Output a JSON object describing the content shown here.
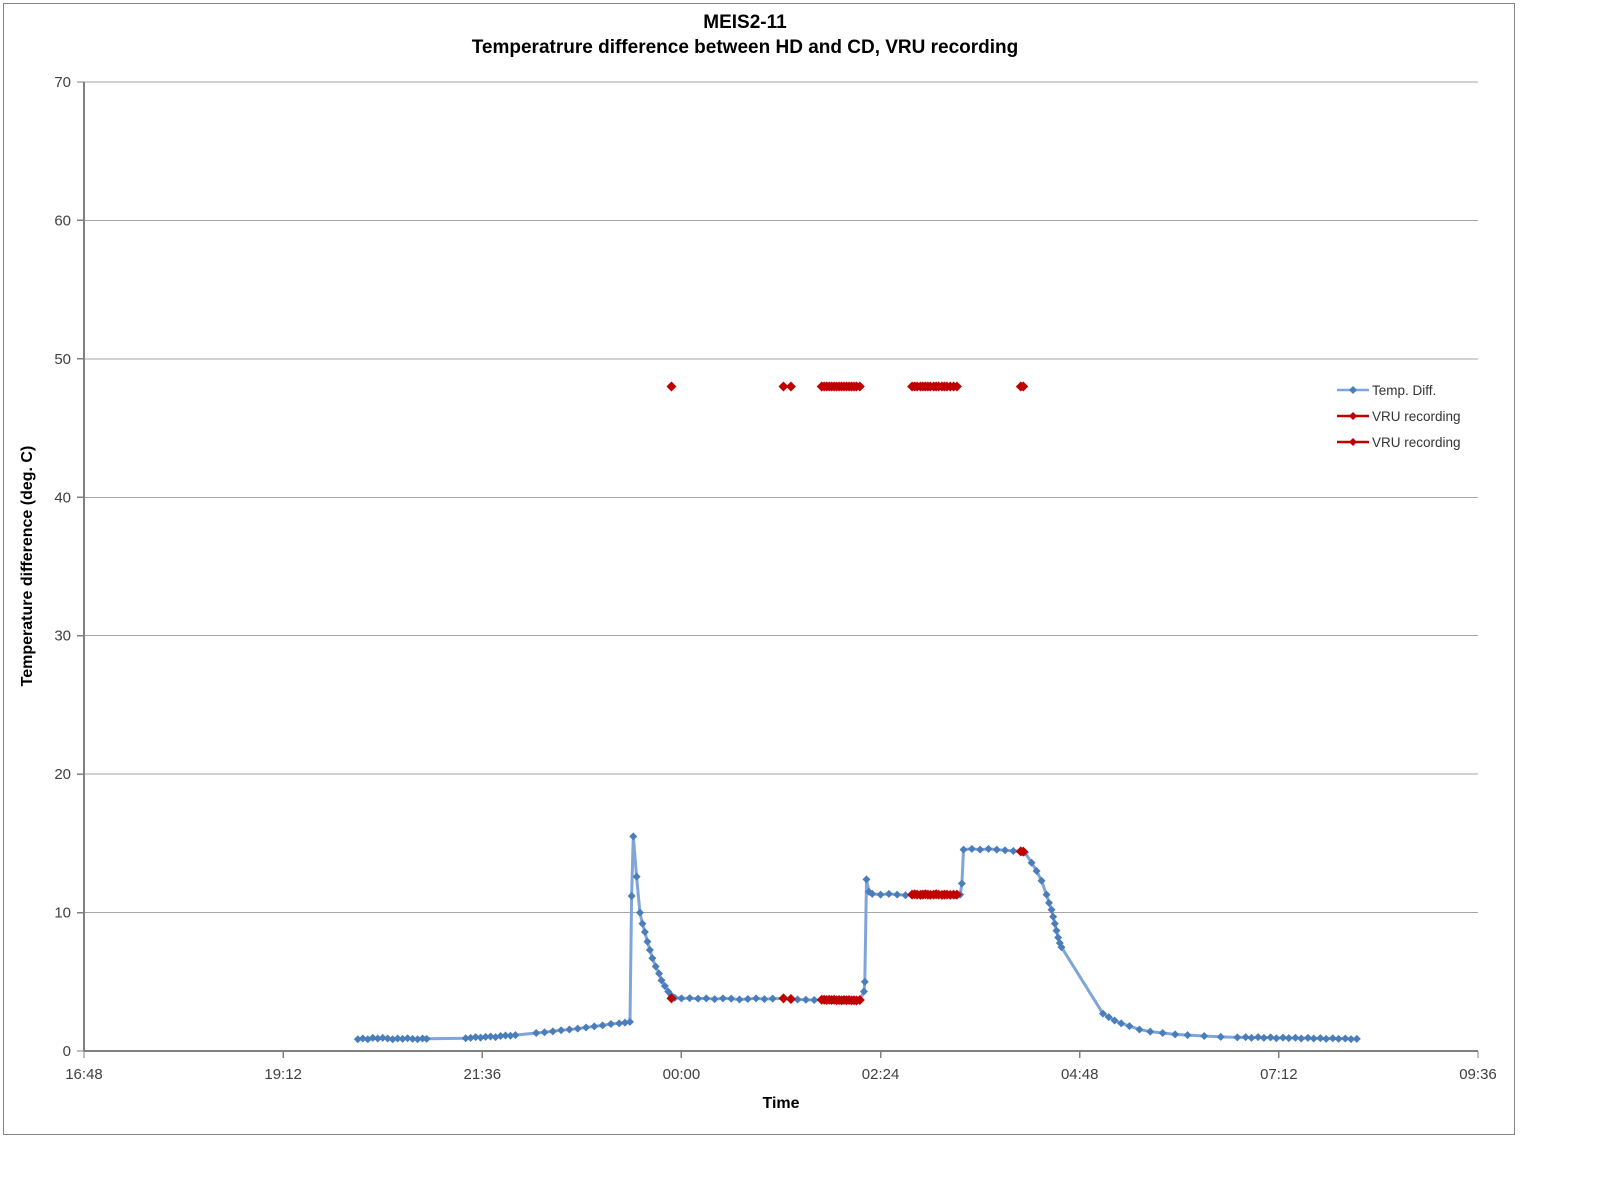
{
  "chart_data": {
    "type": "line",
    "title": "MEIS2-11 — Temperatrure difference between HD and CD, VRU recording",
    "title_line1": "MEIS2-11",
    "title_line2": "Temperatrure difference between HD and CD, VRU recording",
    "xlabel": "Time",
    "ylabel": "Temperature difference (deg. C)",
    "x_unit": "decimal hours after 16:48",
    "xlim": [
      0,
      16.8
    ],
    "ylim": [
      0,
      70
    ],
    "grid": "horizontal-major",
    "legend_position": "right",
    "y_ticks": [
      0,
      10,
      20,
      30,
      40,
      50,
      60,
      70
    ],
    "x_ticks": [
      {
        "t": 0.0,
        "label": "16:48"
      },
      {
        "t": 2.4,
        "label": "19:12"
      },
      {
        "t": 4.8,
        "label": "21:36"
      },
      {
        "t": 7.2,
        "label": "00:00"
      },
      {
        "t": 9.6,
        "label": "02:24"
      },
      {
        "t": 12.0,
        "label": "04:48"
      },
      {
        "t": 14.4,
        "label": "07:12"
      },
      {
        "t": 16.8,
        "label": "09:36"
      }
    ],
    "colors": {
      "grid": "#a6a6a6",
      "axis": "#808080",
      "tick_text": "#404040"
    },
    "series": [
      {
        "name": "Temp. Diff.",
        "marker": "diamond",
        "draw_line": true,
        "line_color": "#7fa5db",
        "marker_color": "#4a7ebb",
        "line_width": 3,
        "marker_size": 4,
        "points": [
          [
            3.3,
            0.85
          ],
          [
            3.36,
            0.9
          ],
          [
            3.42,
            0.85
          ],
          [
            3.48,
            0.95
          ],
          [
            3.54,
            0.9
          ],
          [
            3.6,
            0.95
          ],
          [
            3.66,
            0.9
          ],
          [
            3.72,
            0.85
          ],
          [
            3.78,
            0.9
          ],
          [
            3.84,
            0.88
          ],
          [
            3.9,
            0.92
          ],
          [
            3.96,
            0.88
          ],
          [
            4.02,
            0.85
          ],
          [
            4.08,
            0.9
          ],
          [
            4.13,
            0.88
          ],
          [
            4.6,
            0.92
          ],
          [
            4.66,
            0.95
          ],
          [
            4.72,
            1.0
          ],
          [
            4.78,
            0.97
          ],
          [
            4.84,
            1.02
          ],
          [
            4.9,
            1.05
          ],
          [
            4.96,
            1.0
          ],
          [
            5.02,
            1.08
          ],
          [
            5.08,
            1.12
          ],
          [
            5.14,
            1.1
          ],
          [
            5.2,
            1.15
          ],
          [
            5.45,
            1.3
          ],
          [
            5.55,
            1.35
          ],
          [
            5.65,
            1.42
          ],
          [
            5.75,
            1.5
          ],
          [
            5.85,
            1.55
          ],
          [
            5.95,
            1.62
          ],
          [
            6.05,
            1.7
          ],
          [
            6.15,
            1.78
          ],
          [
            6.25,
            1.85
          ],
          [
            6.35,
            1.95
          ],
          [
            6.45,
            2.0
          ],
          [
            6.52,
            2.05
          ],
          [
            6.58,
            2.1
          ],
          [
            6.6,
            11.2
          ],
          [
            6.62,
            15.5
          ],
          [
            6.66,
            12.6
          ],
          [
            6.7,
            10.0
          ],
          [
            6.73,
            9.2
          ],
          [
            6.76,
            8.6
          ],
          [
            6.79,
            7.9
          ],
          [
            6.82,
            7.3
          ],
          [
            6.85,
            6.7
          ],
          [
            6.89,
            6.1
          ],
          [
            6.93,
            5.6
          ],
          [
            6.96,
            5.1
          ],
          [
            7.0,
            4.7
          ],
          [
            7.04,
            4.3
          ],
          [
            7.08,
            4.0
          ],
          [
            7.12,
            3.85
          ],
          [
            7.2,
            3.8
          ],
          [
            7.3,
            3.82
          ],
          [
            7.4,
            3.78
          ],
          [
            7.5,
            3.8
          ],
          [
            7.6,
            3.75
          ],
          [
            7.7,
            3.8
          ],
          [
            7.8,
            3.78
          ],
          [
            7.9,
            3.72
          ],
          [
            8.0,
            3.76
          ],
          [
            8.1,
            3.8
          ],
          [
            8.2,
            3.75
          ],
          [
            8.3,
            3.78
          ],
          [
            8.43,
            3.8
          ],
          [
            8.52,
            3.76
          ],
          [
            8.6,
            3.72
          ],
          [
            8.7,
            3.7
          ],
          [
            8.8,
            3.68
          ],
          [
            8.9,
            3.7
          ],
          [
            9.0,
            3.68
          ],
          [
            9.1,
            3.66
          ],
          [
            9.2,
            3.68
          ],
          [
            9.3,
            3.65
          ],
          [
            9.35,
            3.68
          ],
          [
            9.4,
            4.3
          ],
          [
            9.41,
            5.0
          ],
          [
            9.43,
            12.4
          ],
          [
            9.46,
            11.5
          ],
          [
            9.5,
            11.35
          ],
          [
            9.6,
            11.3
          ],
          [
            9.7,
            11.35
          ],
          [
            9.8,
            11.3
          ],
          [
            9.9,
            11.25
          ],
          [
            10.0,
            11.3
          ],
          [
            10.1,
            11.35
          ],
          [
            10.2,
            11.3
          ],
          [
            10.3,
            11.25
          ],
          [
            10.4,
            11.3
          ],
          [
            10.5,
            11.25
          ],
          [
            10.56,
            11.3
          ],
          [
            10.58,
            12.1
          ],
          [
            10.6,
            14.55
          ],
          [
            10.7,
            14.6
          ],
          [
            10.8,
            14.55
          ],
          [
            10.9,
            14.6
          ],
          [
            11.0,
            14.55
          ],
          [
            11.1,
            14.5
          ],
          [
            11.2,
            14.45
          ],
          [
            11.3,
            14.4
          ],
          [
            11.34,
            14.35
          ],
          [
            11.42,
            13.6
          ],
          [
            11.48,
            13.0
          ],
          [
            11.54,
            12.3
          ],
          [
            11.6,
            11.3
          ],
          [
            11.63,
            10.7
          ],
          [
            11.66,
            10.2
          ],
          [
            11.68,
            9.7
          ],
          [
            11.7,
            9.2
          ],
          [
            11.72,
            8.7
          ],
          [
            11.74,
            8.2
          ],
          [
            11.76,
            7.8
          ],
          [
            11.78,
            7.5
          ],
          [
            12.28,
            2.7
          ],
          [
            12.35,
            2.45
          ],
          [
            12.42,
            2.2
          ],
          [
            12.5,
            2.0
          ],
          [
            12.6,
            1.8
          ],
          [
            12.72,
            1.55
          ],
          [
            12.85,
            1.4
          ],
          [
            13.0,
            1.3
          ],
          [
            13.15,
            1.2
          ],
          [
            13.3,
            1.15
          ],
          [
            13.5,
            1.08
          ],
          [
            13.7,
            1.02
          ],
          [
            13.9,
            0.98
          ],
          [
            14.0,
            1.0
          ],
          [
            14.07,
            0.95
          ],
          [
            14.15,
            1.0
          ],
          [
            14.22,
            0.95
          ],
          [
            14.3,
            0.98
          ],
          [
            14.37,
            0.92
          ],
          [
            14.45,
            0.97
          ],
          [
            14.52,
            0.93
          ],
          [
            14.6,
            0.96
          ],
          [
            14.67,
            0.9
          ],
          [
            14.75,
            0.95
          ],
          [
            14.82,
            0.9
          ],
          [
            14.9,
            0.93
          ],
          [
            14.97,
            0.88
          ],
          [
            15.05,
            0.92
          ],
          [
            15.12,
            0.88
          ],
          [
            15.2,
            0.9
          ],
          [
            15.27,
            0.86
          ],
          [
            15.34,
            0.88
          ]
        ]
      },
      {
        "name": "VRU recording",
        "marker": "diamond",
        "draw_line": false,
        "line_color": "#c00000",
        "marker_color": "#c00000",
        "line_width": 3,
        "marker_size": 5,
        "note": "recording on/off flag plotted at constant level 48",
        "points": [
          [
            7.08,
            48
          ],
          [
            8.43,
            48
          ],
          [
            8.52,
            48
          ],
          [
            8.89,
            48
          ],
          [
            8.92,
            48
          ],
          [
            8.95,
            48
          ],
          [
            8.98,
            48
          ],
          [
            9.01,
            48
          ],
          [
            9.04,
            48
          ],
          [
            9.07,
            48
          ],
          [
            9.1,
            48
          ],
          [
            9.13,
            48
          ],
          [
            9.16,
            48
          ],
          [
            9.19,
            48
          ],
          [
            9.22,
            48
          ],
          [
            9.25,
            48
          ],
          [
            9.28,
            48
          ],
          [
            9.31,
            48
          ],
          [
            9.35,
            48
          ],
          [
            9.98,
            48
          ],
          [
            10.01,
            48
          ],
          [
            10.04,
            48
          ],
          [
            10.08,
            48
          ],
          [
            10.11,
            48
          ],
          [
            10.14,
            48
          ],
          [
            10.17,
            48
          ],
          [
            10.2,
            48
          ],
          [
            10.24,
            48
          ],
          [
            10.27,
            48
          ],
          [
            10.3,
            48
          ],
          [
            10.34,
            48
          ],
          [
            10.37,
            48
          ],
          [
            10.4,
            48
          ],
          [
            10.44,
            48
          ],
          [
            10.48,
            48
          ],
          [
            10.52,
            48
          ],
          [
            11.29,
            48
          ],
          [
            11.32,
            48
          ]
        ]
      },
      {
        "name": "VRU recording",
        "marker": "diamond",
        "draw_line": false,
        "line_color": "#c00000",
        "marker_color": "#c00000",
        "line_width": 3,
        "marker_size": 5,
        "note": "temperature difference values sampled while VRU recording",
        "points": [
          [
            7.08,
            3.8
          ],
          [
            8.43,
            3.8
          ],
          [
            8.52,
            3.76
          ],
          [
            8.89,
            3.7
          ],
          [
            8.92,
            3.7
          ],
          [
            8.95,
            3.68
          ],
          [
            8.98,
            3.7
          ],
          [
            9.01,
            3.68
          ],
          [
            9.04,
            3.7
          ],
          [
            9.07,
            3.67
          ],
          [
            9.1,
            3.68
          ],
          [
            9.13,
            3.66
          ],
          [
            9.16,
            3.68
          ],
          [
            9.19,
            3.67
          ],
          [
            9.22,
            3.68
          ],
          [
            9.25,
            3.66
          ],
          [
            9.28,
            3.67
          ],
          [
            9.31,
            3.65
          ],
          [
            9.35,
            3.68
          ],
          [
            9.98,
            11.3
          ],
          [
            10.01,
            11.32
          ],
          [
            10.04,
            11.3
          ],
          [
            10.08,
            11.28
          ],
          [
            10.11,
            11.3
          ],
          [
            10.14,
            11.32
          ],
          [
            10.17,
            11.3
          ],
          [
            10.2,
            11.28
          ],
          [
            10.24,
            11.3
          ],
          [
            10.27,
            11.32
          ],
          [
            10.3,
            11.3
          ],
          [
            10.34,
            11.28
          ],
          [
            10.37,
            11.3
          ],
          [
            10.4,
            11.3
          ],
          [
            10.44,
            11.28
          ],
          [
            10.48,
            11.3
          ],
          [
            10.52,
            11.3
          ],
          [
            11.29,
            14.42
          ],
          [
            11.32,
            14.4
          ]
        ]
      }
    ]
  }
}
